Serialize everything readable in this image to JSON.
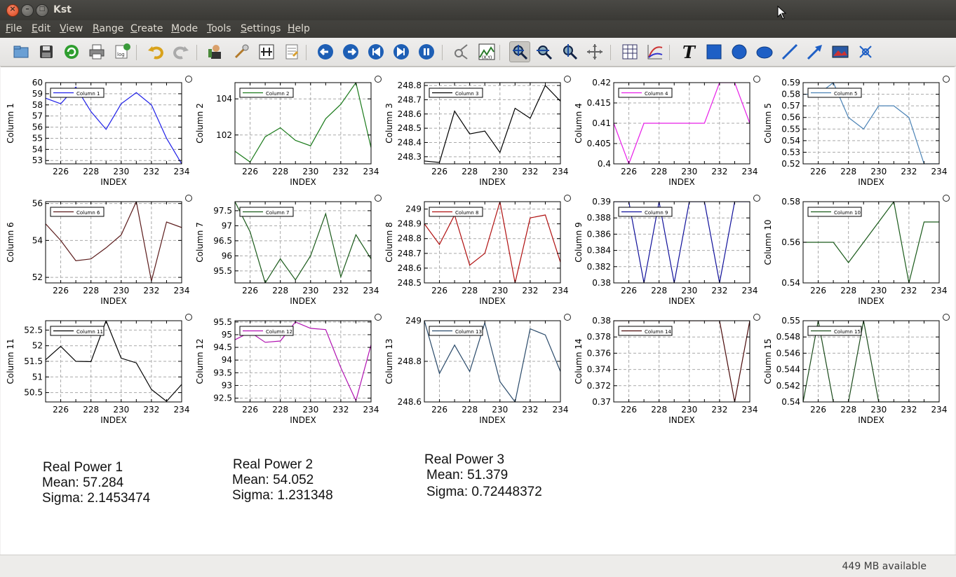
{
  "window": {
    "title": "Kst"
  },
  "menu": [
    {
      "pre": "",
      "u": "F",
      "post": "ile"
    },
    {
      "pre": "",
      "u": "E",
      "post": "dit"
    },
    {
      "pre": "",
      "u": "V",
      "post": "iew"
    },
    {
      "pre": "",
      "u": "R",
      "post": "ange"
    },
    {
      "pre": "",
      "u": "C",
      "post": "reate"
    },
    {
      "pre": "",
      "u": "M",
      "post": "ode"
    },
    {
      "pre": "",
      "u": "T",
      "post": "ools"
    },
    {
      "pre": "",
      "u": "S",
      "post": "ettings"
    },
    {
      "pre": "",
      "u": "H",
      "post": "elp"
    }
  ],
  "toolbar_icons": [
    "open-icon",
    "save-icon",
    "reload-icon",
    "print-icon",
    "export-log-icon",
    "undo-icon",
    "redo-icon",
    "data-manager-icon",
    "change-data-icon",
    "change-file-icon",
    "edit-multiple-icon",
    "back-icon",
    "forward-icon",
    "read-to-start-icon",
    "read-to-end-icon",
    "pause-icon",
    "bug-report-icon",
    "view-xy-icon",
    "zoom-xy-icon",
    "zoom-x-icon",
    "zoom-y-icon",
    "layout-mode-icon",
    "table-icon",
    "curve-icon",
    "text-icon",
    "box-icon",
    "circle-icon",
    "ellipse-icon",
    "line-icon",
    "arrow-icon",
    "picture-icon",
    "shared-axis-icon"
  ],
  "status": {
    "memory": "449 MB available"
  },
  "colors": {
    "c1": "#1f1fe8",
    "c2": "#1a7a1a",
    "c3": "#000000",
    "c4": "#e81ee8",
    "c5": "#4a82b5",
    "c6": "#5a1a1a",
    "c7": "#1a5a1a",
    "c8": "#b01010",
    "c9": "#10109a",
    "c10": "#1a5a1a",
    "c11": "#000000",
    "c12": "#b010b0",
    "c13": "#2a4a6a",
    "c14": "#4a0a0a",
    "c15": "#1a4a1a"
  },
  "chart_data": [
    {
      "type": "line",
      "title": "",
      "xlabel": "INDEX",
      "ylabel": "Column 1",
      "legend": "Column 1",
      "color": "#1f1fe8",
      "x": [
        225,
        226,
        227,
        228,
        229,
        230,
        231,
        232,
        233,
        234
      ],
      "y": [
        58.6,
        58.1,
        59.6,
        57.4,
        55.8,
        58.1,
        59.1,
        58.0,
        55.0,
        52.7
      ],
      "xlim": [
        225,
        234
      ],
      "ylim": [
        52.7,
        60.0
      ],
      "yticks": [
        53,
        54,
        55,
        56,
        57,
        58,
        59,
        60
      ],
      "xticks": [
        226,
        228,
        230,
        232,
        234
      ]
    },
    {
      "type": "line",
      "title": "",
      "xlabel": "INDEX",
      "ylabel": "Column 2",
      "legend": "Column 2",
      "color": "#1a7a1a",
      "x": [
        225,
        226,
        227,
        228,
        229,
        230,
        231,
        232,
        233,
        234
      ],
      "y": [
        101.1,
        100.5,
        101.9,
        102.4,
        101.7,
        101.4,
        102.9,
        103.7,
        104.9,
        101.3
      ],
      "xlim": [
        225,
        234
      ],
      "ylim": [
        100.4,
        104.9
      ],
      "yticks": [
        102,
        104
      ],
      "xticks": [
        226,
        228,
        230,
        232,
        234
      ]
    },
    {
      "type": "line",
      "title": "",
      "xlabel": "INDEX",
      "ylabel": "Column 3",
      "legend": "Column 3",
      "color": "#000000",
      "x": [
        225,
        226,
        227,
        228,
        229,
        230,
        231,
        232,
        233,
        234
      ],
      "y": [
        248.27,
        248.26,
        248.62,
        248.46,
        248.48,
        248.33,
        248.64,
        248.57,
        248.8,
        248.69
      ],
      "xlim": [
        225,
        234
      ],
      "ylim": [
        248.25,
        248.82
      ],
      "yticks": [
        248.3,
        248.4,
        248.5,
        248.6,
        248.7,
        248.8
      ],
      "xticks": [
        226,
        228,
        230,
        232,
        234
      ]
    },
    {
      "type": "line",
      "title": "",
      "xlabel": "INDEX",
      "ylabel": "Column 4",
      "legend": "Column 4",
      "color": "#e81ee8",
      "x": [
        225,
        226,
        227,
        228,
        229,
        230,
        231,
        232,
        233,
        234
      ],
      "y": [
        0.41,
        0.4,
        0.41,
        0.41,
        0.41,
        0.41,
        0.41,
        0.42,
        0.42,
        0.41
      ],
      "xlim": [
        225,
        234
      ],
      "ylim": [
        0.4,
        0.42
      ],
      "yticks": [
        0.4,
        0.405,
        0.41,
        0.415,
        0.42
      ],
      "xticks": [
        226,
        228,
        230,
        232,
        234
      ]
    },
    {
      "type": "line",
      "title": "",
      "xlabel": "INDEX",
      "ylabel": "Column 5",
      "legend": "Column 5",
      "color": "#4a82b5",
      "x": [
        225,
        226,
        227,
        228,
        229,
        230,
        231,
        232,
        233,
        234
      ],
      "y": [
        0.58,
        0.58,
        0.59,
        0.56,
        0.55,
        0.57,
        0.57,
        0.56,
        0.52,
        0.52
      ],
      "xlim": [
        225,
        234
      ],
      "ylim": [
        0.52,
        0.59
      ],
      "yticks": [
        0.52,
        0.53,
        0.54,
        0.55,
        0.56,
        0.57,
        0.58,
        0.59
      ],
      "xticks": [
        226,
        228,
        230,
        232,
        234
      ]
    },
    {
      "type": "line",
      "title": "",
      "xlabel": "INDEX",
      "ylabel": "Column 6",
      "legend": "Column 6",
      "color": "#5a1a1a",
      "x": [
        225,
        226,
        227,
        228,
        229,
        230,
        231,
        232,
        233,
        234
      ],
      "y": [
        54.9,
        54.0,
        52.9,
        53.0,
        53.6,
        54.3,
        56.1,
        51.8,
        55.0,
        54.7
      ],
      "xlim": [
        225,
        234
      ],
      "ylim": [
        51.7,
        56.1
      ],
      "yticks": [
        52,
        54,
        56
      ],
      "xticks": [
        226,
        228,
        230,
        232,
        234
      ]
    },
    {
      "type": "line",
      "title": "",
      "xlabel": "INDEX",
      "ylabel": "Column 7",
      "legend": "Column 7",
      "color": "#1a5a1a",
      "x": [
        225,
        226,
        227,
        228,
        229,
        230,
        231,
        232,
        233,
        234
      ],
      "y": [
        97.8,
        96.8,
        95.1,
        95.9,
        95.2,
        96.0,
        97.4,
        95.3,
        96.7,
        95.9
      ],
      "xlim": [
        225,
        234
      ],
      "ylim": [
        95.1,
        97.8
      ],
      "yticks": [
        95.5,
        96,
        96.5,
        97,
        97.5
      ],
      "xticks": [
        226,
        228,
        230,
        232,
        234
      ]
    },
    {
      "type": "line",
      "title": "",
      "xlabel": "INDEX",
      "ylabel": "Column 8",
      "legend": "Column 8",
      "color": "#b01010",
      "x": [
        225,
        226,
        227,
        228,
        229,
        230,
        231,
        232,
        233,
        234
      ],
      "y": [
        248.9,
        248.76,
        248.96,
        248.62,
        248.7,
        249.05,
        248.5,
        248.94,
        248.96,
        248.64
      ],
      "xlim": [
        225,
        234
      ],
      "ylim": [
        248.5,
        249.05
      ],
      "yticks": [
        248.5,
        248.6,
        248.7,
        248.8,
        248.9,
        249
      ],
      "xticks": [
        226,
        228,
        230,
        232,
        234
      ]
    },
    {
      "type": "line",
      "title": "",
      "xlabel": "INDEX",
      "ylabel": "Column 9",
      "legend": "Column 9",
      "color": "#10109a",
      "x": [
        225,
        226,
        227,
        228,
        229,
        230,
        231,
        232,
        233,
        234
      ],
      "y": [
        0.39,
        0.39,
        0.38,
        0.39,
        0.38,
        0.39,
        0.39,
        0.38,
        0.39,
        0.39
      ],
      "xlim": [
        225,
        234
      ],
      "ylim": [
        0.38,
        0.39
      ],
      "yticks": [
        0.38,
        0.382,
        0.384,
        0.386,
        0.388,
        0.39
      ],
      "xticks": [
        226,
        228,
        230,
        232,
        234
      ]
    },
    {
      "type": "line",
      "title": "",
      "xlabel": "INDEX",
      "ylabel": "Column 10",
      "legend": "Column 10",
      "color": "#1a5a1a",
      "x": [
        225,
        226,
        227,
        228,
        229,
        230,
        231,
        232,
        233,
        234
      ],
      "y": [
        0.56,
        0.56,
        0.56,
        0.55,
        0.56,
        0.57,
        0.58,
        0.54,
        0.57,
        0.57
      ],
      "xlim": [
        225,
        234
      ],
      "ylim": [
        0.54,
        0.58
      ],
      "yticks": [
        0.54,
        0.56,
        0.58
      ],
      "xticks": [
        226,
        228,
        230,
        232,
        234
      ]
    },
    {
      "type": "line",
      "title": "",
      "xlabel": "INDEX",
      "ylabel": "Column 11",
      "legend": "Column 11",
      "color": "#000000",
      "x": [
        225,
        226,
        227,
        228,
        229,
        230,
        231,
        232,
        233,
        234
      ],
      "y": [
        51.55,
        51.98,
        51.5,
        51.49,
        52.8,
        51.6,
        51.45,
        50.6,
        50.22,
        50.76
      ],
      "xlim": [
        225,
        234
      ],
      "ylim": [
        50.2,
        52.8
      ],
      "yticks": [
        50.5,
        51,
        51.5,
        52,
        52.5
      ],
      "xticks": [
        226,
        228,
        230,
        232,
        234
      ]
    },
    {
      "type": "line",
      "title": "",
      "xlabel": "INDEX",
      "ylabel": "Column 12",
      "legend": "Column 12",
      "color": "#b010b0",
      "x": [
        225,
        226,
        227,
        228,
        229,
        230,
        231,
        232,
        233,
        234
      ],
      "y": [
        94.8,
        95.1,
        94.7,
        94.75,
        95.5,
        95.25,
        95.2,
        93.7,
        92.4,
        94.6
      ],
      "xlim": [
        225,
        234
      ],
      "ylim": [
        92.35,
        95.55
      ],
      "yticks": [
        92.5,
        93,
        93.5,
        94,
        94.5,
        95,
        95.5
      ],
      "xticks": [
        226,
        228,
        230,
        232,
        234
      ]
    },
    {
      "type": "line",
      "title": "",
      "xlabel": "INDEX",
      "ylabel": "Column 13",
      "legend": "Column 13",
      "color": "#2a4a6a",
      "x": [
        225,
        226,
        227,
        228,
        229,
        230,
        231,
        232,
        233,
        234
      ],
      "y": [
        249,
        248.74,
        248.88,
        248.75,
        248.99,
        248.7,
        248.6,
        248.96,
        248.93,
        248.75
      ],
      "xlim": [
        225,
        234
      ],
      "ylim": [
        248.6,
        249.0
      ],
      "yticks": [
        248.6,
        248.8,
        249
      ],
      "xticks": [
        226,
        228,
        230,
        232,
        234
      ]
    },
    {
      "type": "line",
      "title": "",
      "xlabel": "INDEX",
      "ylabel": "Column 14",
      "legend": "Column 14",
      "color": "#4a0a0a",
      "x": [
        225,
        226,
        227,
        228,
        229,
        230,
        231,
        232,
        233,
        234
      ],
      "y": [
        0.38,
        0.38,
        0.38,
        0.38,
        0.38,
        0.38,
        0.38,
        0.38,
        0.37,
        0.38
      ],
      "xlim": [
        225,
        234
      ],
      "ylim": [
        0.37,
        0.38
      ],
      "yticks": [
        0.37,
        0.372,
        0.374,
        0.376,
        0.378,
        0.38
      ],
      "xticks": [
        226,
        228,
        230,
        232,
        234
      ]
    },
    {
      "type": "line",
      "title": "",
      "xlabel": "INDEX",
      "ylabel": "Column 15",
      "legend": "Column 15",
      "color": "#1a4a1a",
      "x": [
        225,
        226,
        227,
        228,
        229,
        230,
        231,
        232,
        233,
        234
      ],
      "y": [
        0.54,
        0.55,
        0.54,
        0.54,
        0.55,
        0.54,
        0.54,
        0.54,
        0.54,
        0.54
      ],
      "xlim": [
        225,
        234
      ],
      "ylim": [
        0.54,
        0.55
      ],
      "yticks": [
        0.54,
        0.542,
        0.544,
        0.546,
        0.548,
        0.55
      ],
      "xticks": [
        226,
        228,
        230,
        232,
        234
      ]
    }
  ],
  "labels": [
    {
      "title": "Real Power 1",
      "mean": "Mean: 57.284",
      "sigma": "Sigma: 2.1453474"
    },
    {
      "title": "Real Power 2",
      "mean": "Mean: 54.052",
      "sigma": "Sigma: 1.231348"
    },
    {
      "title": "Real Power 3",
      "mean": "Mean: 51.379",
      "sigma": "Sigma: 0.72448372"
    }
  ]
}
